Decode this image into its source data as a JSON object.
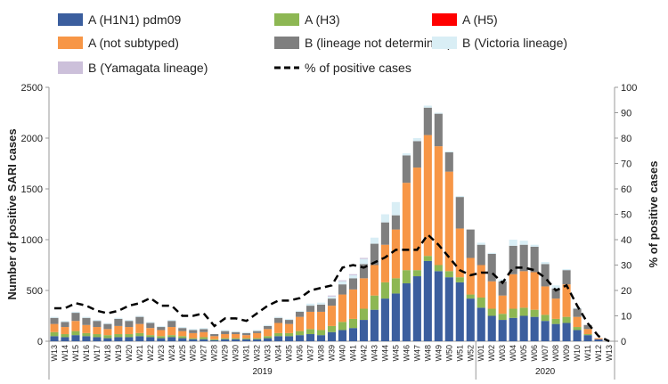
{
  "chart_data": {
    "type": "bar",
    "categories": [
      "W13",
      "W14",
      "W15",
      "W16",
      "W17",
      "W18",
      "W19",
      "W20",
      "W21",
      "W22",
      "W23",
      "W24",
      "W25",
      "W26",
      "W27",
      "W28",
      "W29",
      "W30",
      "W31",
      "W32",
      "W33",
      "W34",
      "W35",
      "W36",
      "W37",
      "W38",
      "W39",
      "W40",
      "W41",
      "W42",
      "W43",
      "W44",
      "W45",
      "W46",
      "W47",
      "W48",
      "W49",
      "W50",
      "W51",
      "W52",
      "W01",
      "W02",
      "W03",
      "W04",
      "W05",
      "W06",
      "W07",
      "W08",
      "W09",
      "W10",
      "W11",
      "W12",
      "W13"
    ],
    "groups": [
      "2019",
      "2020"
    ],
    "y_label": "Number of  positive SARI cases",
    "y2_label": "% of positive cases",
    "ylim": [
      0,
      2500
    ],
    "yticks": [
      0,
      500,
      1000,
      1500,
      2000,
      2500
    ],
    "y2lim": [
      0,
      100
    ],
    "y2ticks": [
      0,
      10,
      20,
      30,
      40,
      50,
      60,
      70,
      80,
      90,
      100
    ],
    "series": [
      {
        "name": "A (H1N1) pdm09",
        "color": "#3b5e9e",
        "values": [
          50,
          40,
          60,
          50,
          40,
          30,
          40,
          40,
          50,
          40,
          30,
          40,
          30,
          20,
          20,
          10,
          20,
          20,
          20,
          20,
          30,
          50,
          50,
          60,
          70,
          60,
          90,
          110,
          130,
          210,
          310,
          420,
          470,
          570,
          640,
          790,
          690,
          630,
          580,
          420,
          330,
          250,
          210,
          230,
          250,
          240,
          200,
          170,
          180,
          110,
          60,
          20,
          0
        ]
      },
      {
        "name": "A (H3)",
        "color": "#8db753",
        "values": [
          40,
          30,
          40,
          30,
          30,
          30,
          30,
          30,
          30,
          20,
          20,
          20,
          20,
          10,
          20,
          10,
          10,
          10,
          10,
          10,
          20,
          30,
          30,
          40,
          50,
          50,
          60,
          80,
          90,
          110,
          140,
          160,
          150,
          130,
          60,
          50,
          60,
          60,
          50,
          40,
          100,
          70,
          60,
          90,
          80,
          70,
          60,
          50,
          60,
          30,
          10,
          0,
          0
        ]
      },
      {
        "name": "A (H5)",
        "color": "#ff0000",
        "values": [
          0,
          0,
          0,
          0,
          0,
          0,
          0,
          0,
          0,
          0,
          0,
          0,
          0,
          0,
          0,
          0,
          0,
          0,
          0,
          0,
          0,
          0,
          0,
          0,
          0,
          0,
          0,
          0,
          0,
          0,
          0,
          0,
          0,
          0,
          0,
          0,
          0,
          0,
          0,
          0,
          0,
          0,
          0,
          0,
          0,
          0,
          0,
          0,
          0,
          0,
          0,
          0,
          0
        ]
      },
      {
        "name": "A (not subtyped)",
        "color": "#f79646",
        "values": [
          80,
          70,
          100,
          80,
          70,
          60,
          80,
          70,
          90,
          70,
          60,
          80,
          50,
          50,
          50,
          30,
          40,
          40,
          30,
          50,
          70,
          100,
          90,
          140,
          170,
          180,
          200,
          270,
          290,
          300,
          300,
          370,
          480,
          860,
          1010,
          1190,
          1170,
          980,
          480,
          360,
          320,
          270,
          180,
          340,
          360,
          370,
          280,
          200,
          320,
          100,
          50,
          10,
          0
        ]
      },
      {
        "name": "B (lineage not determined)",
        "color": "#7f7f7f",
        "values": [
          60,
          50,
          80,
          70,
          60,
          50,
          70,
          60,
          70,
          50,
          30,
          60,
          30,
          30,
          30,
          20,
          30,
          20,
          20,
          20,
          30,
          50,
          40,
          50,
          60,
          70,
          70,
          100,
          110,
          140,
          210,
          220,
          140,
          270,
          260,
          270,
          320,
          190,
          310,
          280,
          200,
          270,
          140,
          280,
          260,
          250,
          220,
          100,
          140,
          80,
          40,
          0,
          0
        ]
      },
      {
        "name": "B (Victoria lineage)",
        "color": "#d9eef5",
        "values": [
          10,
          10,
          10,
          10,
          10,
          10,
          10,
          10,
          10,
          10,
          10,
          10,
          10,
          10,
          10,
          0,
          10,
          10,
          10,
          10,
          10,
          10,
          10,
          10,
          20,
          20,
          20,
          30,
          30,
          50,
          60,
          80,
          130,
          20,
          30,
          20,
          10,
          10,
          10,
          0,
          20,
          10,
          20,
          60,
          40,
          20,
          20,
          30,
          10,
          10,
          0,
          0,
          0
        ]
      },
      {
        "name": "B (Yamagata lineage)",
        "color": "#ccc0da",
        "values": [
          0,
          0,
          0,
          0,
          0,
          0,
          0,
          0,
          0,
          0,
          0,
          0,
          0,
          0,
          0,
          0,
          0,
          0,
          0,
          0,
          0,
          0,
          0,
          0,
          0,
          0,
          10,
          10,
          10,
          10,
          0,
          0,
          0,
          0,
          0,
          0,
          0,
          0,
          0,
          0,
          0,
          0,
          0,
          0,
          0,
          0,
          0,
          0,
          0,
          0,
          0,
          0,
          0
        ]
      },
      {
        "name": "% of positive cases",
        "type": "line",
        "axis": "y2",
        "color": "#000000",
        "values": [
          13,
          13,
          15,
          14,
          12,
          11,
          12,
          14,
          15,
          17,
          14,
          14,
          10,
          10,
          11,
          6,
          9,
          9,
          8,
          11,
          14,
          16,
          16,
          17,
          20,
          21,
          22,
          29,
          30,
          29,
          31,
          33,
          36,
          36,
          36,
          42,
          38,
          33,
          28,
          26,
          27,
          27,
          23,
          29,
          29,
          28,
          25,
          20,
          22,
          14,
          7,
          2,
          0
        ]
      }
    ]
  }
}
